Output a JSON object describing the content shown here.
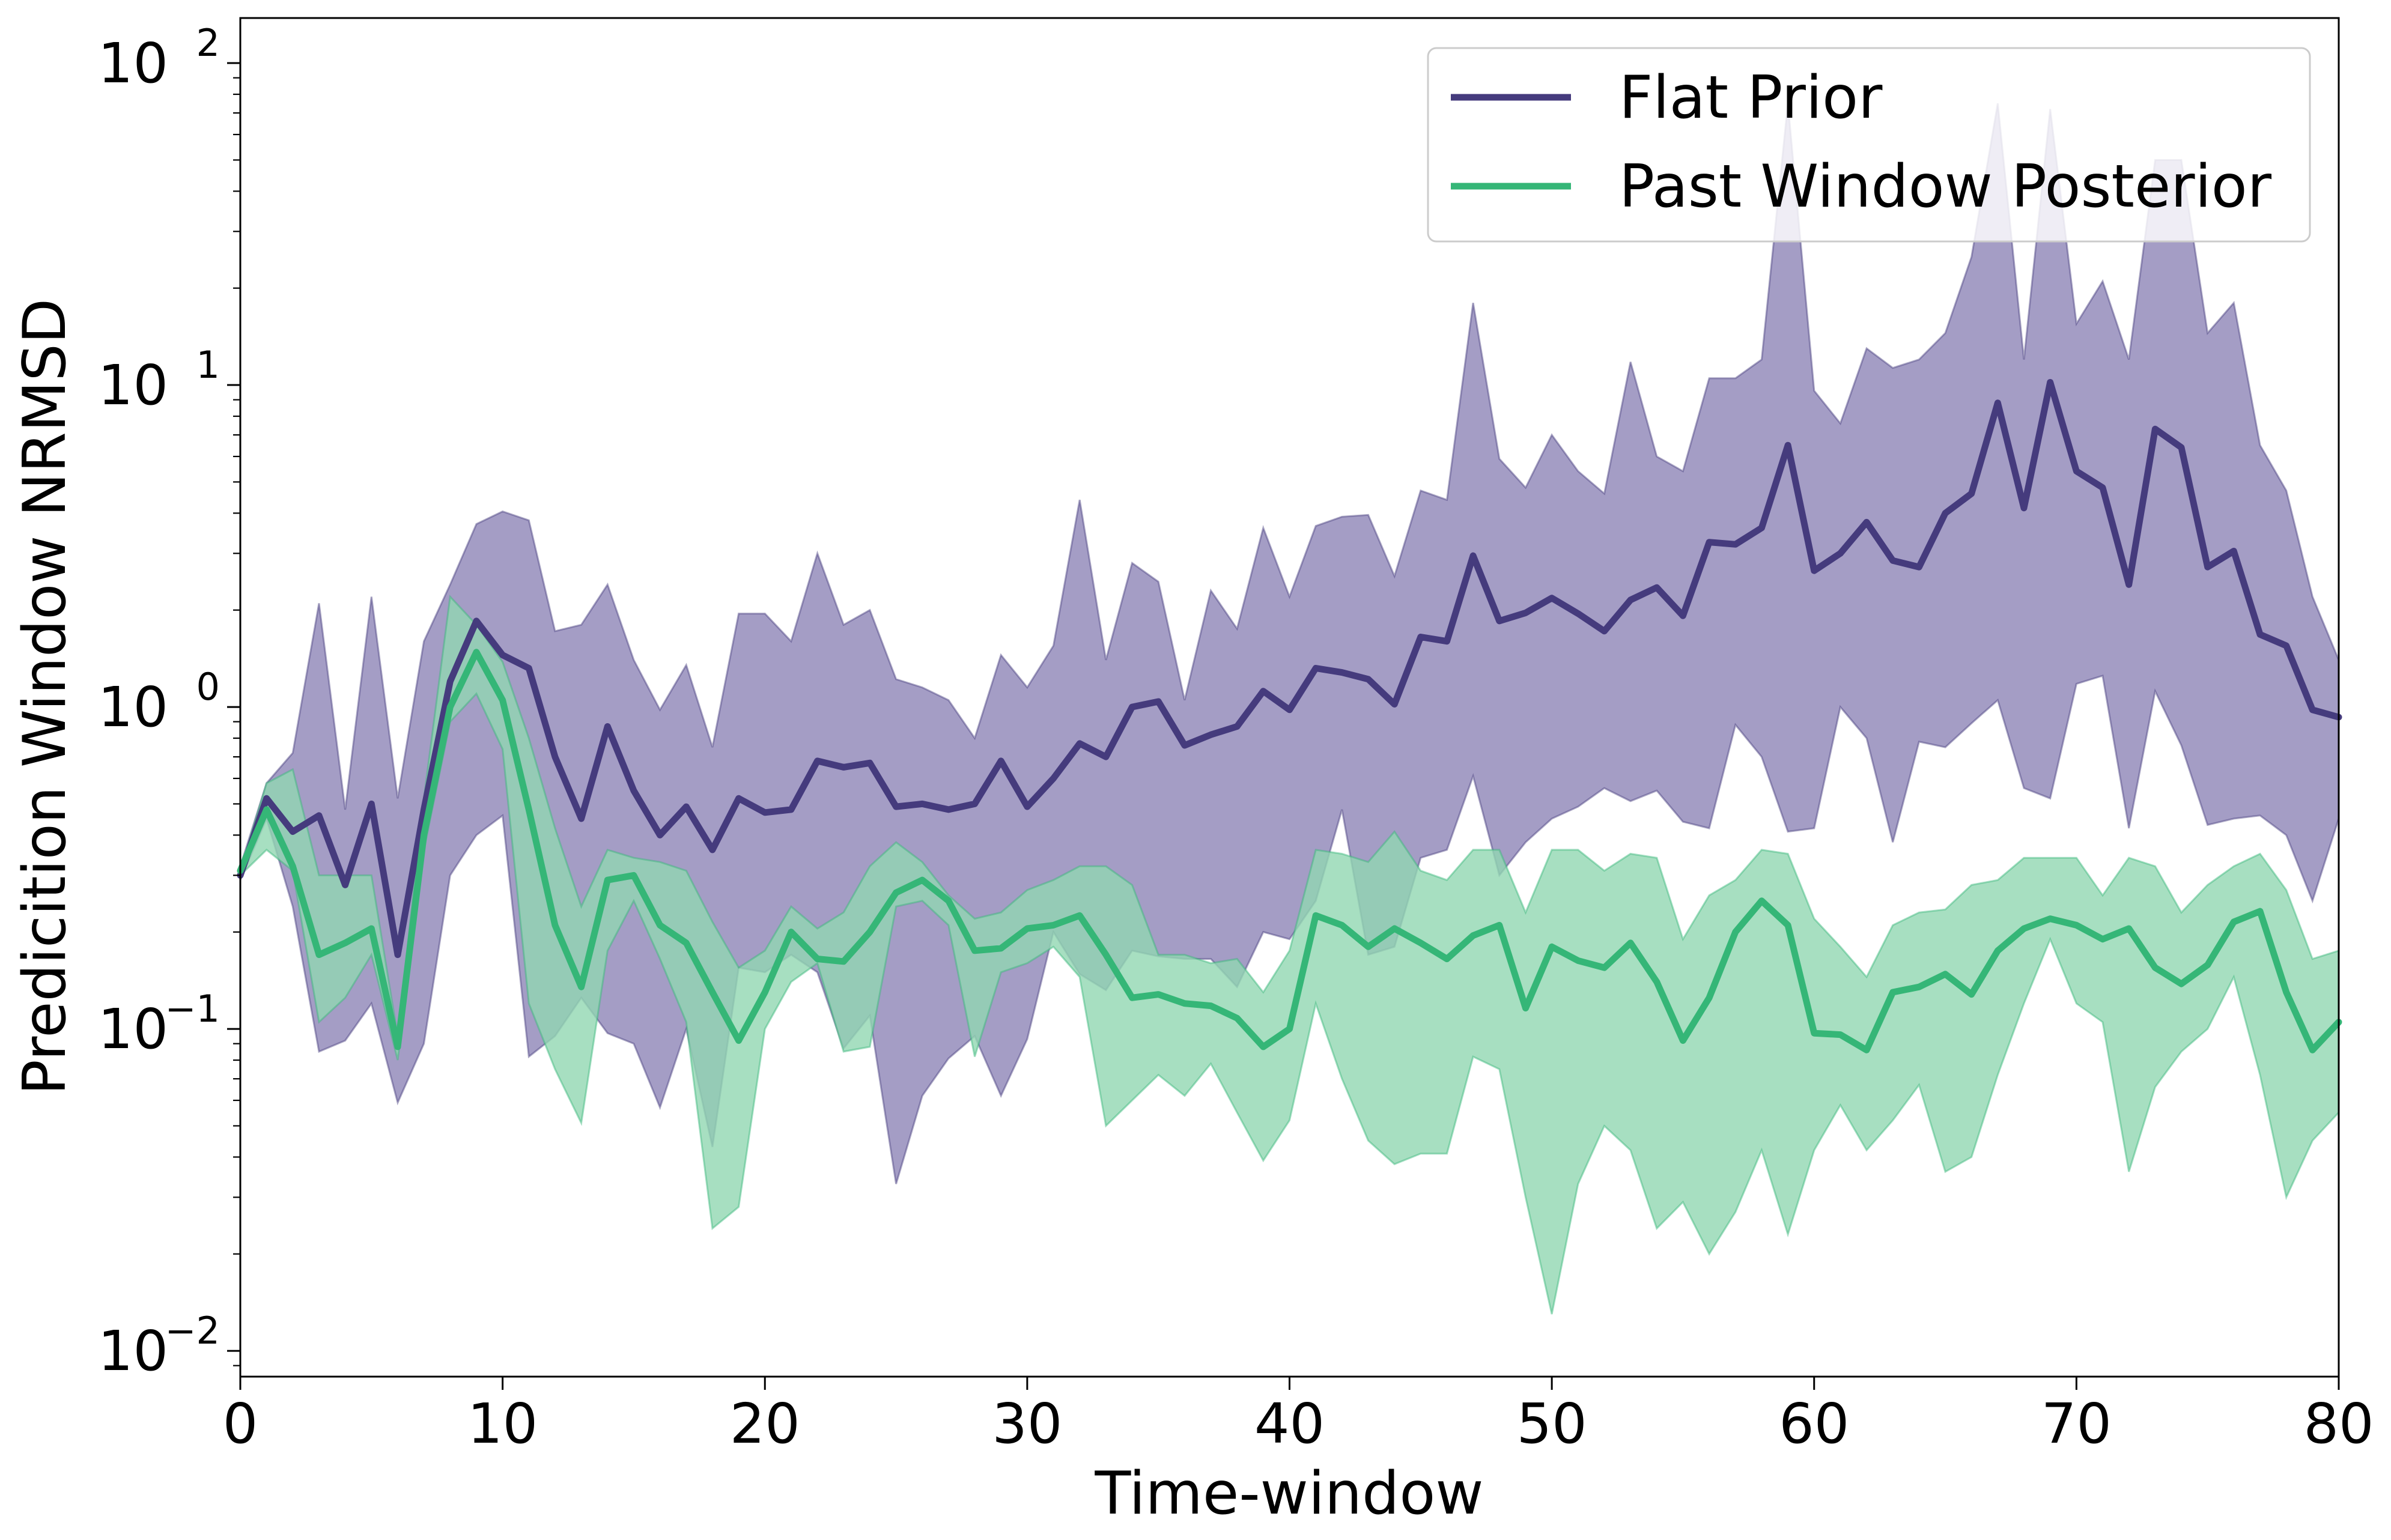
{
  "chart_data": {
    "type": "line",
    "title": "",
    "xlabel": "Time-window",
    "ylabel": "Predicition Window NRMSD",
    "xlim": [
      0,
      80
    ],
    "ylim_log10": [
      -2.08,
      2.14
    ],
    "yscale": "log",
    "grid": false,
    "legend_position": "top-right",
    "x_ticks": [
      0,
      10,
      20,
      30,
      40,
      50,
      60,
      70,
      80
    ],
    "y_ticks": [
      {
        "base": "10",
        "exp": "−2",
        "value": 0.01
      },
      {
        "base": "10",
        "exp": "−1",
        "value": 0.1
      },
      {
        "base": "10",
        "exp": "0",
        "value": 1
      },
      {
        "base": "10",
        "exp": "1",
        "value": 10
      },
      {
        "base": "10",
        "exp": "2",
        "value": 100
      }
    ],
    "x": [
      0,
      1,
      2,
      3,
      4,
      5,
      6,
      7,
      8,
      9,
      10,
      11,
      12,
      13,
      14,
      15,
      16,
      17,
      18,
      19,
      20,
      21,
      22,
      23,
      24,
      25,
      26,
      27,
      28,
      29,
      30,
      31,
      32,
      33,
      34,
      35,
      36,
      37,
      38,
      39,
      40,
      41,
      42,
      43,
      44,
      45,
      46,
      47,
      48,
      49,
      50,
      51,
      52,
      53,
      54,
      55,
      56,
      57,
      58,
      59,
      60,
      61,
      62,
      63,
      64,
      65,
      66,
      67,
      68,
      69,
      70,
      71,
      72,
      73,
      74,
      75,
      76,
      77,
      78,
      79,
      80
    ],
    "series": [
      {
        "name": "Flat Prior",
        "color": "#453b7d",
        "fill_color": "#9f98c2",
        "values": [
          0.3,
          0.52,
          0.41,
          0.46,
          0.28,
          0.5,
          0.17,
          0.48,
          1.2,
          1.85,
          1.45,
          1.32,
          0.7,
          0.45,
          0.87,
          0.55,
          0.4,
          0.49,
          0.36,
          0.52,
          0.47,
          0.48,
          0.68,
          0.65,
          0.67,
          0.49,
          0.5,
          0.48,
          0.5,
          0.68,
          0.49,
          0.6,
          0.77,
          0.7,
          1.0,
          1.04,
          0.76,
          0.82,
          0.87,
          1.12,
          0.98,
          1.32,
          1.28,
          1.22,
          1.02,
          1.65,
          1.6,
          2.95,
          1.85,
          1.96,
          2.18,
          1.95,
          1.72,
          2.15,
          2.35,
          1.92,
          3.25,
          3.2,
          3.6,
          6.5,
          2.65,
          3.0,
          3.75,
          2.85,
          2.72,
          4.0,
          4.6,
          8.8,
          4.15,
          10.2,
          5.4,
          4.8,
          2.4,
          7.3,
          6.4,
          2.72,
          3.05,
          1.68,
          1.55,
          0.98,
          0.93
        ],
        "upper": [
          0.32,
          0.58,
          0.72,
          2.1,
          0.48,
          2.2,
          0.52,
          1.6,
          2.4,
          3.7,
          4.05,
          3.8,
          1.72,
          1.8,
          2.4,
          1.4,
          0.98,
          1.35,
          0.75,
          1.95,
          1.95,
          1.6,
          3.0,
          1.8,
          2.0,
          1.22,
          1.15,
          1.05,
          0.8,
          1.45,
          1.15,
          1.55,
          4.4,
          1.4,
          2.8,
          2.45,
          1.05,
          2.3,
          1.75,
          3.6,
          2.2,
          3.65,
          3.9,
          3.95,
          2.55,
          4.7,
          4.4,
          18.0,
          5.9,
          4.8,
          7.0,
          5.4,
          4.6,
          11.8,
          6.0,
          5.4,
          10.5,
          10.5,
          12.0,
          75.0,
          9.6,
          7.6,
          13.0,
          11.3,
          12.0,
          14.5,
          25.0,
          75.0,
          12.0,
          72.0,
          15.5,
          21.0,
          12.0,
          50.0,
          50.0,
          14.5,
          18.0,
          6.5,
          4.7,
          2.2,
          1.4
        ],
        "lower": [
          0.29,
          0.45,
          0.24,
          0.085,
          0.092,
          0.12,
          0.059,
          0.09,
          0.3,
          0.4,
          0.46,
          0.082,
          0.095,
          0.125,
          0.097,
          0.09,
          0.057,
          0.1,
          0.043,
          0.155,
          0.15,
          0.17,
          0.15,
          0.087,
          0.11,
          0.033,
          0.062,
          0.081,
          0.095,
          0.062,
          0.093,
          0.2,
          0.148,
          0.132,
          0.175,
          0.168,
          0.165,
          0.165,
          0.135,
          0.2,
          0.19,
          0.25,
          0.48,
          0.17,
          0.18,
          0.34,
          0.36,
          0.61,
          0.3,
          0.38,
          0.45,
          0.49,
          0.56,
          0.51,
          0.55,
          0.44,
          0.42,
          0.88,
          0.7,
          0.41,
          0.42,
          1.0,
          0.8,
          0.38,
          0.78,
          0.75,
          0.89,
          1.05,
          0.56,
          0.52,
          1.18,
          1.25,
          0.42,
          1.12,
          0.76,
          0.43,
          0.45,
          0.46,
          0.4,
          0.25,
          0.45
        ]
      },
      {
        "name": "Past Window Posterior",
        "color": "#35b677",
        "fill_color": "#91d7b2",
        "values": [
          0.31,
          0.48,
          0.32,
          0.17,
          0.185,
          0.205,
          0.088,
          0.4,
          1.0,
          1.48,
          1.05,
          0.48,
          0.21,
          0.135,
          0.29,
          0.3,
          0.21,
          0.185,
          0.13,
          0.092,
          0.13,
          0.2,
          0.165,
          0.162,
          0.2,
          0.265,
          0.29,
          0.25,
          0.175,
          0.178,
          0.205,
          0.21,
          0.225,
          0.17,
          0.125,
          0.128,
          0.12,
          0.118,
          0.108,
          0.088,
          0.1,
          0.225,
          0.21,
          0.18,
          0.205,
          0.185,
          0.165,
          0.195,
          0.21,
          0.116,
          0.18,
          0.163,
          0.155,
          0.185,
          0.14,
          0.092,
          0.125,
          0.2,
          0.25,
          0.21,
          0.097,
          0.096,
          0.086,
          0.13,
          0.135,
          0.148,
          0.128,
          0.175,
          0.205,
          0.22,
          0.21,
          0.19,
          0.205,
          0.155,
          0.138,
          0.158,
          0.215,
          0.232,
          0.13,
          0.086,
          0.105
        ],
        "upper": [
          0.31,
          0.58,
          0.64,
          0.3,
          0.3,
          0.3,
          0.095,
          0.52,
          2.2,
          1.8,
          1.38,
          0.8,
          0.42,
          0.24,
          0.36,
          0.34,
          0.33,
          0.31,
          0.215,
          0.155,
          0.175,
          0.24,
          0.205,
          0.23,
          0.32,
          0.38,
          0.33,
          0.26,
          0.22,
          0.23,
          0.27,
          0.29,
          0.32,
          0.32,
          0.28,
          0.17,
          0.17,
          0.16,
          0.165,
          0.13,
          0.175,
          0.36,
          0.35,
          0.33,
          0.41,
          0.31,
          0.29,
          0.36,
          0.36,
          0.23,
          0.36,
          0.36,
          0.31,
          0.35,
          0.34,
          0.19,
          0.26,
          0.29,
          0.36,
          0.35,
          0.22,
          0.18,
          0.145,
          0.21,
          0.23,
          0.235,
          0.28,
          0.29,
          0.34,
          0.34,
          0.34,
          0.26,
          0.34,
          0.32,
          0.23,
          0.28,
          0.32,
          0.35,
          0.27,
          0.165,
          0.175
        ],
        "lower": [
          0.3,
          0.36,
          0.31,
          0.105,
          0.125,
          0.17,
          0.08,
          0.36,
          0.9,
          1.1,
          0.74,
          0.12,
          0.075,
          0.051,
          0.175,
          0.25,
          0.165,
          0.105,
          0.024,
          0.028,
          0.1,
          0.14,
          0.16,
          0.085,
          0.088,
          0.24,
          0.25,
          0.21,
          0.082,
          0.15,
          0.16,
          0.18,
          0.145,
          0.05,
          0.06,
          0.072,
          0.062,
          0.078,
          0.055,
          0.039,
          0.052,
          0.12,
          0.07,
          0.045,
          0.038,
          0.041,
          0.041,
          0.082,
          0.075,
          0.03,
          0.013,
          0.033,
          0.05,
          0.042,
          0.024,
          0.029,
          0.02,
          0.027,
          0.042,
          0.023,
          0.042,
          0.058,
          0.042,
          0.052,
          0.067,
          0.036,
          0.04,
          0.072,
          0.12,
          0.19,
          0.12,
          0.105,
          0.036,
          0.066,
          0.085,
          0.1,
          0.145,
          0.072,
          0.03,
          0.045,
          0.055
        ]
      }
    ]
  }
}
